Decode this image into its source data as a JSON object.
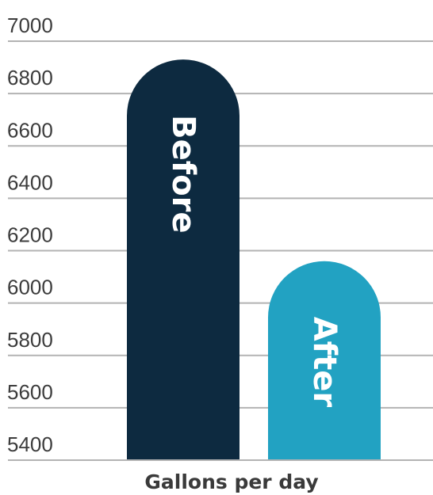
{
  "chart_data": {
    "type": "bar",
    "categories": [
      "Before",
      "After"
    ],
    "values": [
      6930,
      6160
    ],
    "xlabel": "Gallons  per day",
    "ylabel": "",
    "ylim": [
      5400,
      7000
    ],
    "yticks": [
      7000,
      6800,
      6600,
      6400,
      6200,
      6000,
      5800,
      5600,
      5400
    ],
    "grid": true,
    "legend": "none",
    "colors": [
      "#0d2a40",
      "#22a2c2"
    ],
    "gridline_color": "#b3b3b3"
  }
}
